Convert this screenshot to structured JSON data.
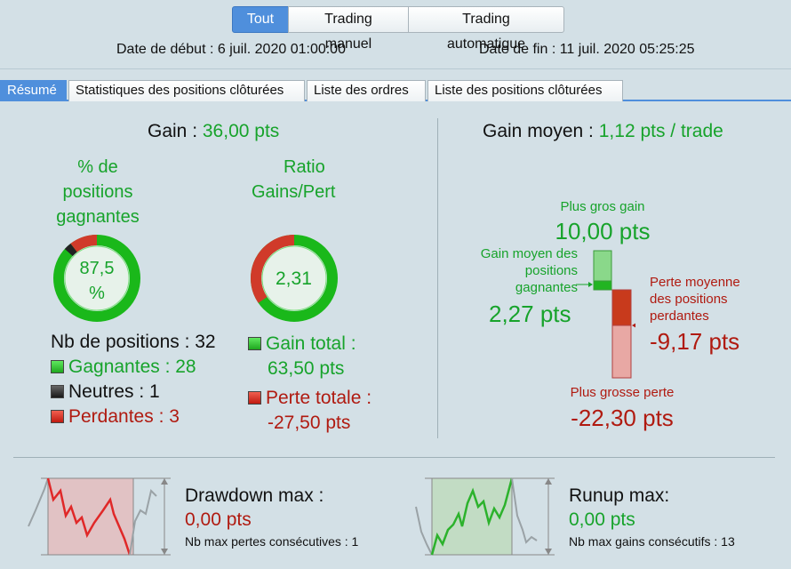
{
  "modes": [
    "Tout",
    "Trading manuel",
    "Trading automatique"
  ],
  "dates": {
    "start": "Date de début : 6 juil. 2020 01:00:00",
    "end": "Date de fin : 11 juil. 2020 05:25:25"
  },
  "tabs": [
    "Résumé",
    "Statistiques des positions clôturées",
    "Liste des ordres",
    "Liste des positions clôturées"
  ],
  "gain": {
    "label": "Gain :",
    "value": "36,00 pts"
  },
  "win_pct": {
    "title_lines": [
      "% de",
      "positions",
      "gagnantes"
    ],
    "value_lines": [
      "87,5",
      "%"
    ],
    "fraction": 0.875
  },
  "ratio": {
    "title_lines": [
      "Ratio",
      "Gains/Pert"
    ],
    "value": "2,31"
  },
  "positions": {
    "total": "Nb de positions : 32",
    "winners": "Gagnantes : 28",
    "neutral": "Neutres : 1",
    "losers": "Perdantes : 3"
  },
  "totals": {
    "gain_label": "Gain total :",
    "gain_value": "63,50 pts",
    "loss_label": "Perte totale :",
    "loss_value": "-27,50 pts"
  },
  "avg": {
    "label": "Gain moyen :",
    "value": "1,12 pts / trade",
    "biggest_gain_label": "Plus gros gain",
    "biggest_gain_value": "10,00 pts",
    "avg_win_lines": [
      "Gain moyen des",
      "positions",
      "gagnantes"
    ],
    "avg_win_value": "2,27 pts",
    "avg_loss_lines": [
      "Perte moyenne",
      "des positions",
      "perdantes"
    ],
    "avg_loss_value": "-9,17 pts",
    "biggest_loss_label": "Plus grosse perte",
    "biggest_loss_value": "-22,30 pts"
  },
  "drawdown": {
    "title": "Drawdown max :",
    "value": "0,00 pts",
    "sub": "Nb max pertes consécutives : 1"
  },
  "runup": {
    "title": "Runup max:",
    "value": "0,00 pts",
    "sub": "Nb max gains consécutifs : 13"
  },
  "colors": {
    "accent": "#4f8fdc",
    "gain": "#17a32b",
    "loss": "#b01a10",
    "neutral": "#222222"
  }
}
